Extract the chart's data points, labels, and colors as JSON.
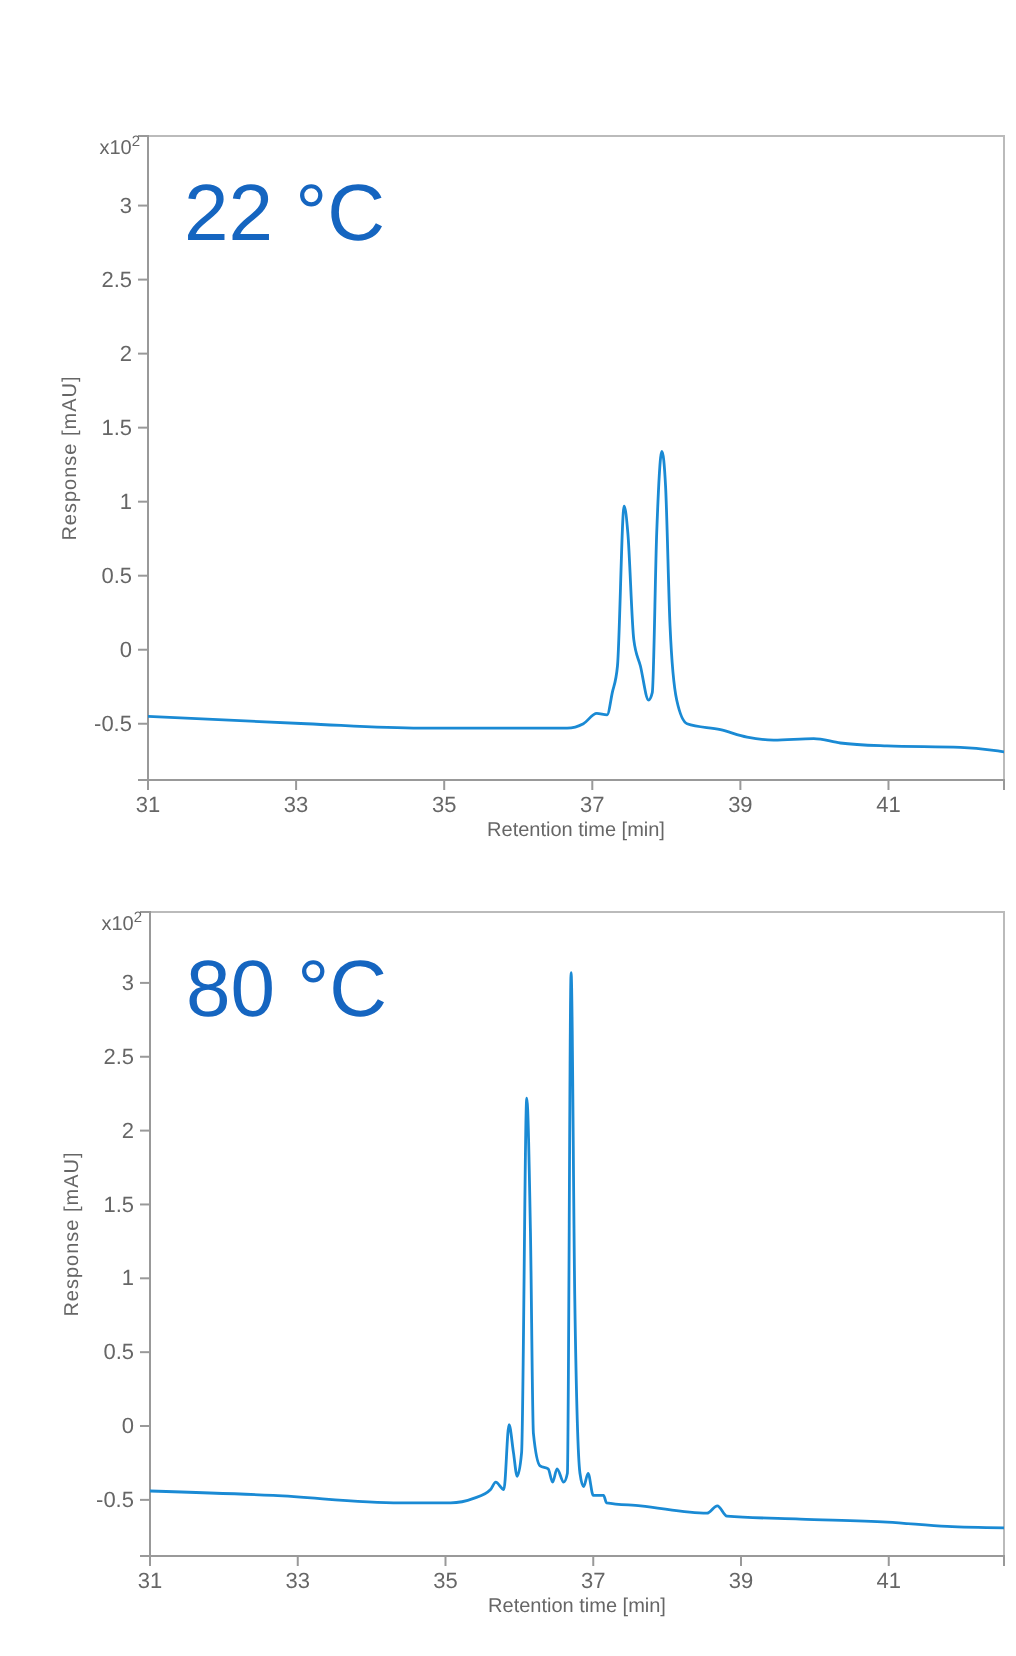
{
  "chart_data": [
    {
      "type": "line",
      "xlabel": "Retention time [min]",
      "ylabel": "Response [mAU]",
      "annotations": [
        "x10$^{2}$",
        "22 °C"
      ],
      "xlim": [
        31,
        42.56
      ],
      "ylim": [
        -0.88,
        3.47
      ],
      "xticks": [
        31,
        33,
        35,
        37,
        39,
        41
      ],
      "yticks": [
        -0.5,
        0,
        0.5,
        1,
        1.5,
        2,
        2.5,
        3
      ],
      "grid": false,
      "series": [
        {
          "color": "#1a8ad4",
          "x": [
            31,
            33.14,
            34.68,
            36.66,
            36.88,
            37.06,
            37.2,
            37.27,
            37.34,
            37.43,
            37.48,
            37.56,
            37.65,
            37.76,
            37.81,
            37.87,
            37.94,
            37.99,
            38.05,
            38.14,
            38.28,
            38.73,
            39.09,
            39.45,
            39.99,
            40.35,
            40.98,
            41.97,
            42.42,
            42.56
          ],
          "values": [
            -0.45,
            -0.5,
            -0.53,
            -0.53,
            -0.5,
            -0.43,
            -0.44,
            -0.29,
            -0.11,
            0.97,
            0.79,
            0.07,
            -0.11,
            -0.34,
            -0.29,
            0.79,
            1.34,
            1.1,
            0.16,
            -0.34,
            -0.5,
            -0.54,
            -0.59,
            -0.61,
            -0.6,
            -0.63,
            -0.65,
            -0.66,
            -0.68,
            -0.69
          ]
        }
      ]
    },
    {
      "type": "line",
      "xlabel": "Retention time [min]",
      "ylabel": "Response [mAU]",
      "annotations": [
        "x10$^{2}$",
        "80 °C"
      ],
      "xlim": [
        31,
        42.56
      ],
      "ylim": [
        -0.88,
        3.48
      ],
      "xticks": [
        31,
        33,
        35,
        37,
        39,
        41
      ],
      "yticks": [
        -0.5,
        0,
        0.5,
        1,
        1.5,
        2,
        2.5,
        3
      ],
      "grid": false,
      "series": [
        {
          "color": "#1a8ad4",
          "x": [
            31,
            32.67,
            34.39,
            35.07,
            35.38,
            35.61,
            35.68,
            35.79,
            35.86,
            35.92,
            35.97,
            36.03,
            36.1,
            36.15,
            36.19,
            36.28,
            36.39,
            36.45,
            36.51,
            36.6,
            36.65,
            36.7,
            36.75,
            36.82,
            36.87,
            36.93,
            37,
            37.14,
            37.18,
            37.64,
            38.54,
            38.68,
            38.81,
            39.8,
            40.98,
            41.79,
            42.56
          ],
          "values": [
            -0.44,
            -0.47,
            -0.52,
            -0.52,
            -0.49,
            -0.43,
            -0.38,
            -0.43,
            0.01,
            -0.18,
            -0.34,
            -0.18,
            2.22,
            1.31,
            -0.05,
            -0.27,
            -0.29,
            -0.38,
            -0.29,
            -0.38,
            -0.32,
            3.07,
            0.86,
            -0.32,
            -0.41,
            -0.32,
            -0.47,
            -0.47,
            -0.52,
            -0.54,
            -0.59,
            -0.54,
            -0.61,
            -0.63,
            -0.65,
            -0.68,
            -0.69
          ]
        }
      ]
    }
  ]
}
